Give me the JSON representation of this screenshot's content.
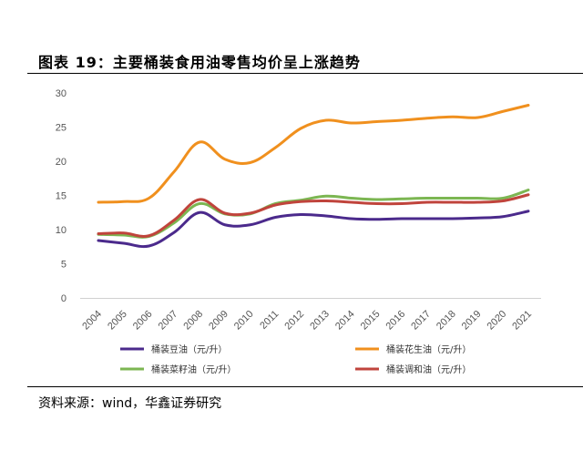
{
  "header": {
    "title": "图表 19：主要桶装食用油零售均价呈上涨趋势"
  },
  "footer": {
    "source": "资料来源：wind，华鑫证券研究"
  },
  "chart_data": {
    "type": "line",
    "categories": [
      "2004",
      "2005",
      "2006",
      "2007",
      "2008",
      "2009",
      "2010",
      "2011",
      "2012",
      "2013",
      "2014",
      "2015",
      "2016",
      "2017",
      "2018",
      "2019",
      "2020",
      "2021"
    ],
    "ylim": [
      0,
      30
    ],
    "yticks": [
      0,
      5,
      10,
      15,
      20,
      25,
      30
    ],
    "grid": false,
    "legend": "bottom",
    "series": [
      {
        "name": "桶装豆油（元/升）",
        "color": "#4b2a8c",
        "values": [
          8.4,
          8.0,
          7.6,
          9.6,
          12.5,
          10.7,
          10.7,
          11.8,
          12.2,
          12.0,
          11.6,
          11.5,
          11.6,
          11.6,
          11.6,
          11.7,
          11.9,
          12.7
        ]
      },
      {
        "name": "桶装花生油（元/升）",
        "color": "#f0901e",
        "values": [
          14.0,
          14.1,
          14.6,
          18.5,
          22.8,
          20.3,
          19.8,
          22.0,
          24.8,
          26.0,
          25.6,
          25.8,
          26.0,
          26.3,
          26.5,
          26.4,
          27.3,
          28.2
        ]
      },
      {
        "name": "桶装菜籽油（元/升）",
        "color": "#7cb652",
        "values": [
          9.3,
          9.2,
          9.0,
          11.0,
          13.8,
          12.3,
          12.3,
          13.8,
          14.3,
          14.9,
          14.6,
          14.4,
          14.5,
          14.6,
          14.6,
          14.6,
          14.6,
          15.8
        ]
      },
      {
        "name": "桶装调和油（元/升）",
        "color": "#c0443c",
        "values": [
          9.4,
          9.5,
          9.1,
          11.4,
          14.4,
          12.4,
          12.4,
          13.6,
          14.1,
          14.2,
          14.0,
          13.8,
          13.8,
          14.0,
          14.0,
          14.0,
          14.2,
          15.1
        ]
      }
    ]
  }
}
